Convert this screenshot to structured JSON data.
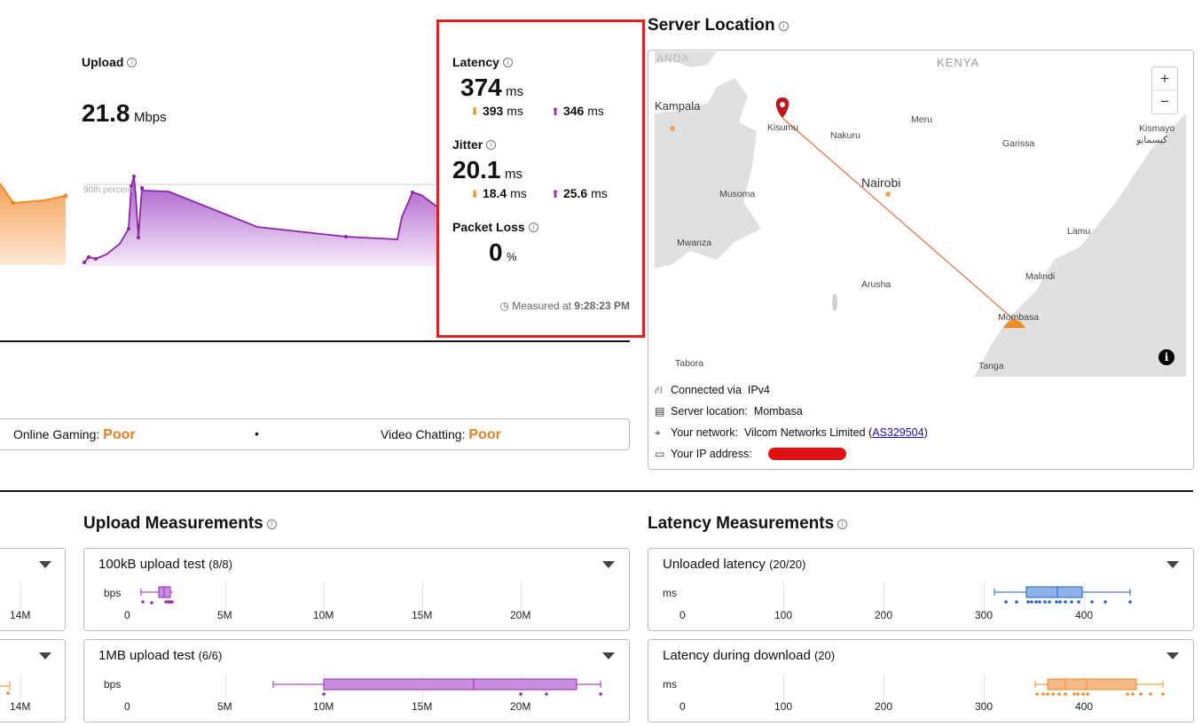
{
  "upload": {
    "title": "Upload",
    "value": "21.8",
    "unit": "Mbps",
    "percentile_label": "90th percentile"
  },
  "latency_box": {
    "latency_label": "Latency",
    "latency_value": "374",
    "latency_unit": "ms",
    "latency_down": "393",
    "latency_up": "346",
    "jitter_label": "Jitter",
    "jitter_value": "20.1",
    "jitter_unit": "ms",
    "jitter_down": "18.4",
    "jitter_up": "25.6",
    "ms": "ms",
    "packet_loss_label": "Packet Loss",
    "packet_loss_value": "0",
    "packet_loss_unit": "%",
    "measured_prefix": "Measured at",
    "measured_time": "9:28:23 PM",
    "highlight_color": "#e02020"
  },
  "quality": {
    "gaming_label": "Online Gaming:",
    "gaming_value": "Poor",
    "separator": "•",
    "video_label": "Video Chatting:",
    "video_value": "Poor"
  },
  "server": {
    "title": "Server Location",
    "map_labels": {
      "kenya": "KENYA",
      "anda": "ANDA",
      "kampala": "Kampala",
      "kisumu": "Kisumu",
      "nakuru": "Nakuru",
      "meru": "Meru",
      "garissa": "Garissa",
      "kismayo": "Kismayo",
      "kismayo_ar": "كيسمايو",
      "nairobi": "Nairobi",
      "musoma": "Musoma",
      "mwanza": "Mwanza",
      "lamu": "Lamu",
      "arusha": "Arusha",
      "malindi": "Malindi",
      "mombasa": "Mombasa",
      "tabora": "Tabora",
      "tanga": "Tanga"
    },
    "zoom_in": "+",
    "zoom_out": "−",
    "info_symbol": "i",
    "connected_label": "Connected via",
    "connected_value": "IPv4",
    "location_label": "Server location:",
    "location_value": "Mombasa",
    "network_label": "Your network:",
    "network_value": "Vilcom Networks Limited (",
    "network_as": "AS329504",
    "network_close": ")",
    "ip_label": "Your IP address:"
  },
  "upload_measurements": {
    "title": "Upload Measurements",
    "tests": [
      {
        "name": "100kB upload test",
        "count": "(8/8)"
      },
      {
        "name": "1MB upload test",
        "count": "(6/6)"
      }
    ],
    "unit": "bps",
    "ticks": [
      "0",
      "5M",
      "10M",
      "15M",
      "20M"
    ]
  },
  "left_partial": {
    "tick": "14M"
  },
  "latency_measurements": {
    "title": "Latency Measurements",
    "tests": [
      {
        "name": "Unloaded latency",
        "count": "(20/20)"
      },
      {
        "name": "Latency during download",
        "count": "(20)"
      }
    ],
    "unit": "ms",
    "ticks": [
      "0",
      "100",
      "200",
      "300",
      "400"
    ]
  },
  "colors": {
    "download": "#f08a24",
    "upload": "#9c27b0",
    "latency_box": "#4a86d4"
  }
}
